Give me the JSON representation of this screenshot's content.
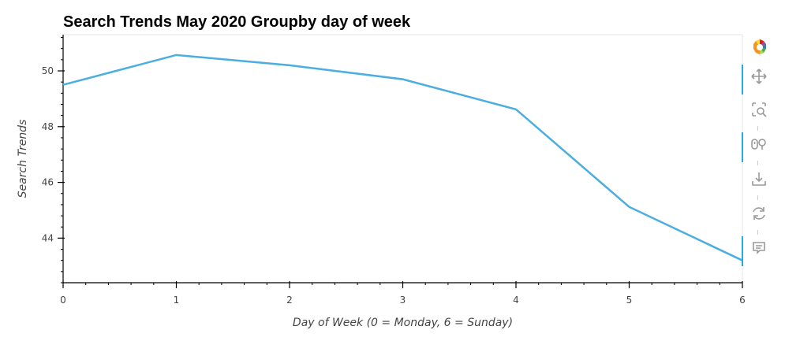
{
  "chart_data": {
    "type": "line",
    "title": "Search Trends May 2020 Groupby day of week",
    "xlabel": "Day of Week (0 = Monday, 6 = Sunday)",
    "ylabel": "Search Trends",
    "x": [
      0,
      1,
      2,
      3,
      4,
      5,
      6
    ],
    "y": [
      49.5,
      50.57,
      50.2,
      49.7,
      48.62,
      45.12,
      43.2
    ],
    "xlim": [
      0,
      6
    ],
    "ylim": [
      42.4,
      51.3
    ],
    "xticks": [
      0,
      1,
      2,
      3,
      4,
      5,
      6
    ],
    "yticks": [
      44,
      46,
      48,
      50
    ],
    "line_color": "#4aaee0",
    "grid": false
  },
  "toolbar": {
    "tools": [
      {
        "icon": "bokeh-logo-icon"
      },
      {
        "icon": "pan-icon",
        "active": true
      },
      {
        "icon": "box-zoom-icon"
      },
      {
        "icon": "wheel-zoom-icon",
        "active": true
      },
      {
        "icon": "save-icon"
      },
      {
        "icon": "reset-icon"
      },
      {
        "icon": "hover-icon",
        "active": true
      }
    ]
  }
}
